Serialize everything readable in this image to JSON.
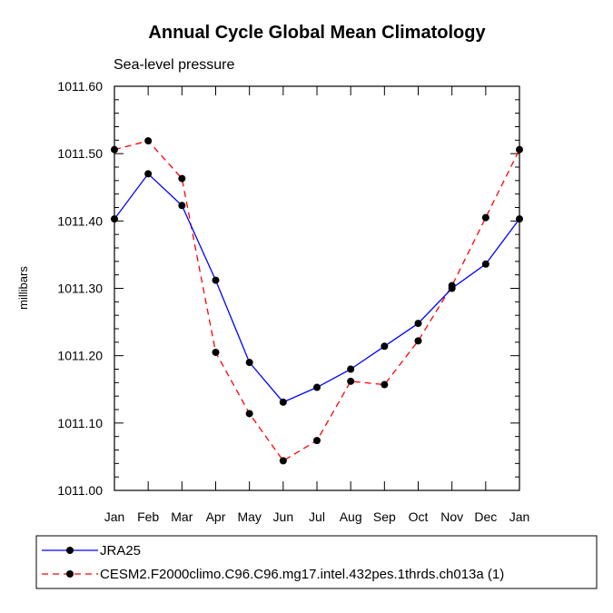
{
  "chart_data": {
    "type": "line",
    "title": "Annual Cycle Global Mean Climatology",
    "subtitle": "Sea-level pressure",
    "ylabel": "millibars",
    "xlabel": "",
    "categories": [
      "Jan",
      "Feb",
      "Mar",
      "Apr",
      "May",
      "Jun",
      "Jul",
      "Aug",
      "Sep",
      "Oct",
      "Nov",
      "Dec",
      "Jan"
    ],
    "ylim": [
      1011.0,
      1011.6
    ],
    "yticks": [
      1011.0,
      1011.1,
      1011.2,
      1011.3,
      1011.4,
      1011.5,
      1011.6
    ],
    "ytick_labels": [
      "1011.00",
      "1011.10",
      "1011.20",
      "1011.30",
      "1011.40",
      "1011.50",
      "1011.60"
    ],
    "legend_position": "bottom",
    "series": [
      {
        "name": "JRA25",
        "color": "#0000ff",
        "dash": "solid",
        "values": [
          1011.403,
          1011.47,
          1011.423,
          1011.312,
          1011.19,
          1011.131,
          1011.153,
          1011.18,
          1011.214,
          1011.248,
          1011.3,
          1011.336,
          1011.403
        ]
      },
      {
        "name": "CESM2.F2000climo.C96.C96.mg17.intel.432pes.1thrds.ch013a (1)",
        "color": "#ff0000",
        "dash": "dashed",
        "values": [
          1011.506,
          1011.519,
          1011.463,
          1011.205,
          1011.114,
          1011.044,
          1011.074,
          1011.162,
          1011.157,
          1011.222,
          1011.304,
          1011.405,
          1011.506
        ]
      }
    ]
  }
}
